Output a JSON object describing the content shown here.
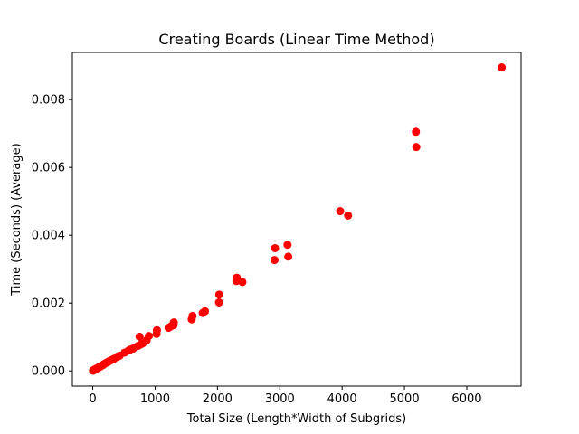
{
  "chart_data": {
    "type": "scatter",
    "title": "Creating Boards (Linear Time Method)",
    "xlabel": "Total Size (Length*Width of Subgrids)",
    "ylabel": "Time (Seconds) (Average)",
    "xlim": [
      -327,
      6871
    ],
    "ylim": [
      -0.000447,
      0.00939
    ],
    "xticks": [
      0,
      1000,
      2000,
      3000,
      4000,
      5000,
      6000
    ],
    "xtick_labels": [
      "0",
      "1000",
      "2000",
      "3000",
      "4000",
      "5000",
      "6000"
    ],
    "yticks": [
      0.0,
      0.002,
      0.004,
      0.006,
      0.008
    ],
    "ytick_labels": [
      "0.000",
      "0.002",
      "0.004",
      "0.006",
      "0.008"
    ],
    "grid": false,
    "marker_color": "#ff0000",
    "series": [
      {
        "points": [
          [
            4,
            1e-05
          ],
          [
            8,
            1e-05
          ],
          [
            12,
            2e-05
          ],
          [
            16,
            2e-05
          ],
          [
            20,
            3e-05
          ],
          [
            27,
            3e-05
          ],
          [
            32,
            4e-05
          ],
          [
            36,
            4e-05
          ],
          [
            45,
            5e-05
          ],
          [
            48,
            6e-05
          ],
          [
            54,
            6e-05
          ],
          [
            64,
            7e-05
          ],
          [
            72,
            8e-05
          ],
          [
            81,
            9e-05
          ],
          [
            96,
            0.0001
          ],
          [
            100,
            0.00011
          ],
          [
            108,
            0.00012
          ],
          [
            125,
            0.00013
          ],
          [
            128,
            0.00014
          ],
          [
            144,
            0.00016
          ],
          [
            162,
            0.00017
          ],
          [
            180,
            0.0002
          ],
          [
            192,
            0.00021
          ],
          [
            216,
            0.00024
          ],
          [
            243,
            0.00026
          ],
          [
            256,
            0.00028
          ],
          [
            288,
            0.00031
          ],
          [
            324,
            0.00034
          ],
          [
            343,
            0.00036
          ],
          [
            400,
            0.00042
          ],
          [
            432,
            0.00045
          ],
          [
            512,
            0.00054
          ],
          [
            576,
            0.0006
          ],
          [
            600,
            0.00063
          ],
          [
            648,
            0.00066
          ],
          [
            729,
            0.00074
          ],
          [
            750,
            0.00101
          ],
          [
            768,
            0.00078
          ],
          [
            800,
            0.00081
          ],
          [
            864,
            0.0009
          ],
          [
            900,
            0.00103
          ],
          [
            1024,
            0.00109
          ],
          [
            1029,
            0.0012
          ],
          [
            1215,
            0.00127
          ],
          [
            1250,
            0.00131
          ],
          [
            1296,
            0.00135
          ],
          [
            1300,
            0.00143
          ],
          [
            1587,
            0.00152
          ],
          [
            1600,
            0.00162
          ],
          [
            1764,
            0.00171
          ],
          [
            1800,
            0.00176
          ],
          [
            2025,
            0.00202
          ],
          [
            2028,
            0.00225
          ],
          [
            2304,
            0.00265
          ],
          [
            2310,
            0.00275
          ],
          [
            2401,
            0.00262
          ],
          [
            2916,
            0.00327
          ],
          [
            2925,
            0.00362
          ],
          [
            3125,
            0.00372
          ],
          [
            3136,
            0.00337
          ],
          [
            3969,
            0.00471
          ],
          [
            4096,
            0.00458
          ],
          [
            5184,
            0.00705
          ],
          [
            5190,
            0.0066
          ],
          [
            6561,
            0.00895
          ]
        ]
      }
    ]
  }
}
